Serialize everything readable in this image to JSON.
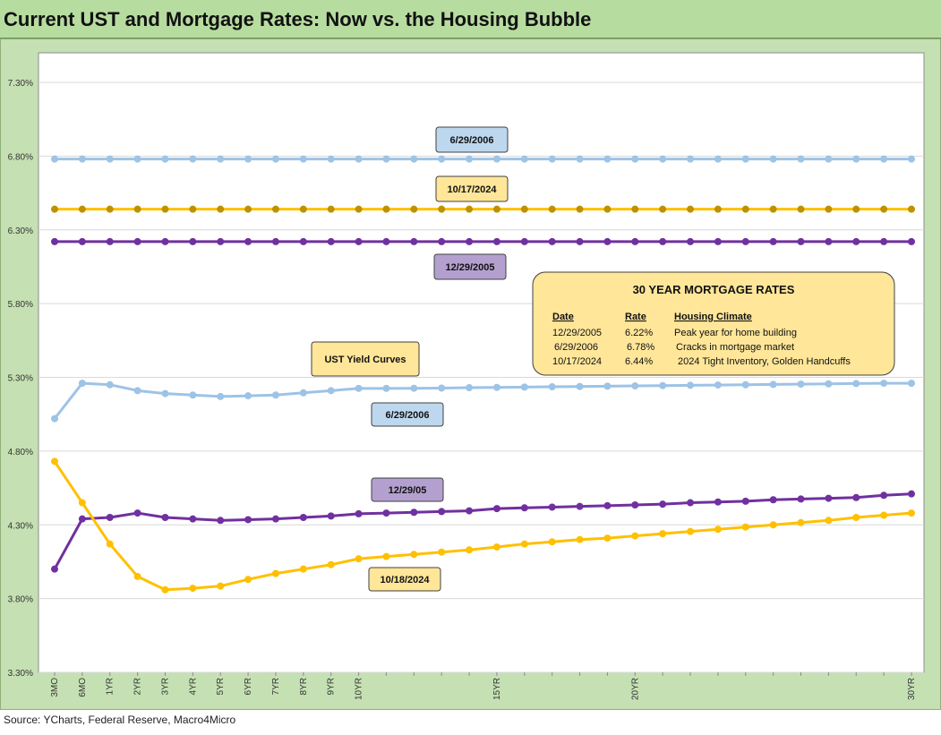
{
  "title": "Current UST and Mortgage Rates: Now vs. the Housing Bubble",
  "source": "Source: YCharts, Federal Reserve, Macro4Micro",
  "chart_data": {
    "type": "line",
    "y_ticks": [
      "7.30%",
      "6.80%",
      "6.30%",
      "5.80%",
      "5.30%",
      "4.80%",
      "4.30%",
      "3.80%",
      "3.30%"
    ],
    "ylim": [
      3.3,
      7.3
    ],
    "x_tick_labels": [
      "3MO",
      "6MO",
      "1YR",
      "2YR",
      "3YR",
      "4YR",
      "5YR",
      "6YR",
      "7YR",
      "8YR",
      "9YR",
      "10YR",
      "",
      "",
      "",
      "",
      "15YR",
      "",
      "",
      "",
      "",
      "20YR",
      "",
      "",
      "",
      "",
      "",
      "",
      "",
      "",
      "",
      "30YR"
    ],
    "grid": true,
    "colors": {
      "light_blue": "#9dc3e6",
      "gold": "#ffc000",
      "dark_gold": "#bf9000",
      "purple": "#7030a0"
    },
    "series": [
      {
        "style": "mortgage_2006",
        "color": "#9dc3e6",
        "values": [
          6.78,
          6.78,
          6.78,
          6.78,
          6.78,
          6.78,
          6.78,
          6.78,
          6.78,
          6.78,
          6.78,
          6.78,
          6.78,
          6.78,
          6.78,
          6.78,
          6.78,
          6.78,
          6.78,
          6.78,
          6.78,
          6.78,
          6.78,
          6.78,
          6.78,
          6.78,
          6.78,
          6.78,
          6.78,
          6.78,
          6.78,
          6.78
        ]
      },
      {
        "style": "mortgage_2024",
        "color": "#bf9000",
        "line_color": "#ffc000",
        "values": [
          6.44,
          6.44,
          6.44,
          6.44,
          6.44,
          6.44,
          6.44,
          6.44,
          6.44,
          6.44,
          6.44,
          6.44,
          6.44,
          6.44,
          6.44,
          6.44,
          6.44,
          6.44,
          6.44,
          6.44,
          6.44,
          6.44,
          6.44,
          6.44,
          6.44,
          6.44,
          6.44,
          6.44,
          6.44,
          6.44,
          6.44,
          6.44
        ]
      },
      {
        "style": "mortgage_2005",
        "color": "#7030a0",
        "values": [
          6.22,
          6.22,
          6.22,
          6.22,
          6.22,
          6.22,
          6.22,
          6.22,
          6.22,
          6.22,
          6.22,
          6.22,
          6.22,
          6.22,
          6.22,
          6.22,
          6.22,
          6.22,
          6.22,
          6.22,
          6.22,
          6.22,
          6.22,
          6.22,
          6.22,
          6.22,
          6.22,
          6.22,
          6.22,
          6.22,
          6.22,
          6.22
        ]
      },
      {
        "style": "ust_2006",
        "color": "#9dc3e6",
        "values": [
          5.02,
          5.26,
          5.25,
          5.21,
          5.19,
          5.18,
          5.17,
          5.175,
          5.18,
          5.195,
          5.21,
          5.225,
          5.225,
          5.226,
          5.227,
          5.23,
          5.232,
          5.234,
          5.236,
          5.238,
          5.24,
          5.242,
          5.244,
          5.246,
          5.248,
          5.25,
          5.252,
          5.254,
          5.256,
          5.258,
          5.26,
          5.26
        ]
      },
      {
        "style": "ust_2005",
        "color": "#7030a0",
        "values": [
          4.0,
          4.34,
          4.35,
          4.38,
          4.35,
          4.34,
          4.33,
          4.335,
          4.34,
          4.35,
          4.36,
          4.375,
          4.38,
          4.385,
          4.39,
          4.395,
          4.41,
          4.415,
          4.42,
          4.425,
          4.43,
          4.435,
          4.44,
          4.45,
          4.455,
          4.46,
          4.47,
          4.475,
          4.48,
          4.485,
          4.5,
          4.51
        ]
      },
      {
        "style": "ust_2024",
        "color": "#ffc000",
        "values": [
          4.73,
          4.45,
          4.17,
          3.95,
          3.86,
          3.87,
          3.885,
          3.93,
          3.97,
          4.0,
          4.03,
          4.07,
          4.085,
          4.1,
          4.115,
          4.13,
          4.15,
          4.17,
          4.185,
          4.2,
          4.21,
          4.225,
          4.24,
          4.255,
          4.27,
          4.285,
          4.3,
          4.315,
          4.33,
          4.35,
          4.365,
          4.38
        ]
      }
    ],
    "callouts": [
      {
        "text": "6/29/2006",
        "fill": "#bdd7ee"
      },
      {
        "text": "10/17/2024",
        "fill": "#ffe699"
      },
      {
        "text": "12/29/2005",
        "fill": "#b4a0cf"
      },
      {
        "text": "UST Yield Curves",
        "fill": "#ffe699"
      },
      {
        "text": "6/29/2006",
        "fill": "#bdd7ee"
      },
      {
        "text": "12/29/05",
        "fill": "#b4a0cf"
      },
      {
        "text": "10/18/2024",
        "fill": "#ffe699"
      }
    ],
    "mortgage_table": {
      "title": "30 YEAR MORTGAGE RATES",
      "headers": [
        "Date",
        "Rate",
        "Housing Climate"
      ],
      "rows": [
        [
          "12/29/2005",
          "6.22%",
          "Peak year for home building"
        ],
        [
          "6/29/2006",
          "6.78%",
          "Cracks in mortgage market"
        ],
        [
          "10/17/2024",
          "6.44%",
          "2024 Tight Inventory, Golden Handcuffs"
        ]
      ],
      "fill": "#ffe699"
    }
  }
}
